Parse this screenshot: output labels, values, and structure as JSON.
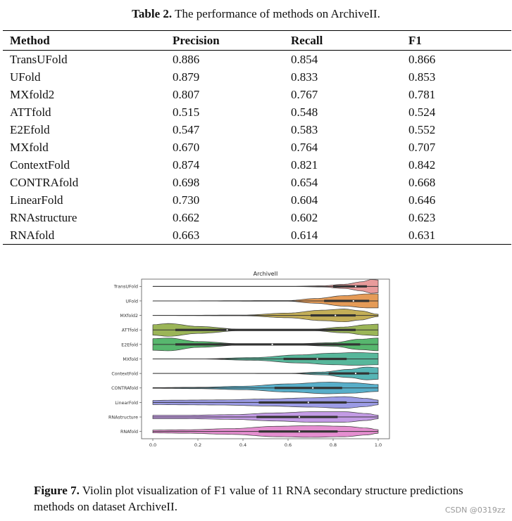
{
  "table_caption": {
    "label": "Table 2.",
    "text": " The performance of methods on ArchiveII."
  },
  "table": {
    "headers": [
      "Method",
      "Precision",
      "Recall",
      "F1"
    ],
    "rows": [
      [
        "TransUFold",
        "0.886",
        "0.854",
        "0.866"
      ],
      [
        "UFold",
        "0.879",
        "0.833",
        "0.853"
      ],
      [
        "MXfold2",
        "0.807",
        "0.767",
        "0.781"
      ],
      [
        "ATTfold",
        "0.515",
        "0.548",
        "0.524"
      ],
      [
        "E2Efold",
        "0.547",
        "0.583",
        "0.552"
      ],
      [
        "MXfold",
        "0.670",
        "0.764",
        "0.707"
      ],
      [
        "ContextFold",
        "0.874",
        "0.821",
        "0.842"
      ],
      [
        "CONTRAfold",
        "0.698",
        "0.654",
        "0.668"
      ],
      [
        "LinearFold",
        "0.730",
        "0.604",
        "0.646"
      ],
      [
        "RNAstructure",
        "0.662",
        "0.602",
        "0.623"
      ],
      [
        "RNAfold",
        "0.663",
        "0.614",
        "0.631"
      ]
    ]
  },
  "chart_data": {
    "type": "violin",
    "title": "ArchiveII",
    "orientation": "horizontal",
    "xlim": [
      -0.05,
      1.05
    ],
    "xticks": [
      "0.0",
      "0.2",
      "0.4",
      "0.6",
      "0.8",
      "1.0"
    ],
    "xtick_values": [
      0,
      0.2,
      0.4,
      0.6,
      0.8,
      1.0
    ],
    "categories": [
      "TransUFold",
      "UFold",
      "MXfold2",
      "ATTfold",
      "E2Efold",
      "MXfold",
      "ContextFold",
      "CONTRAfold",
      "LinearFold",
      "RNAstructure",
      "RNAfold"
    ],
    "colors": [
      "#e48a8a",
      "#e08a3a",
      "#b8a03a",
      "#8aa83a",
      "#3aaa55",
      "#3aaa8a",
      "#3aa8a8",
      "#3aa0c0",
      "#8a8ae0",
      "#b88ae0",
      "#e07ac8"
    ],
    "series": [
      {
        "name": "TransUFold",
        "q1": 0.8,
        "median": 0.9,
        "q3": 0.95,
        "profile": [
          [
            0,
            0.003
          ],
          [
            0.6,
            0.003
          ],
          [
            0.75,
            0.05
          ],
          [
            0.85,
            0.18
          ],
          [
            0.93,
            0.4
          ],
          [
            0.97,
            0.6
          ],
          [
            1.0,
            0.55
          ]
        ]
      },
      {
        "name": "UFold",
        "q1": 0.76,
        "median": 0.89,
        "q3": 0.96,
        "profile": [
          [
            0,
            0.003
          ],
          [
            0.6,
            0.03
          ],
          [
            0.72,
            0.2
          ],
          [
            0.85,
            0.45
          ],
          [
            0.95,
            0.6
          ],
          [
            1.0,
            0.6
          ]
        ]
      },
      {
        "name": "MXfold2",
        "q1": 0.7,
        "median": 0.81,
        "q3": 0.9,
        "profile": [
          [
            0,
            0.003
          ],
          [
            0.4,
            0.03
          ],
          [
            0.6,
            0.2
          ],
          [
            0.75,
            0.45
          ],
          [
            0.85,
            0.55
          ],
          [
            0.92,
            0.4
          ],
          [
            1.0,
            0.1
          ]
        ]
      },
      {
        "name": "ATTfold",
        "q1": 0.1,
        "median": 0.33,
        "q3": 0.9,
        "profile": [
          [
            0,
            0.45
          ],
          [
            0.07,
            0.55
          ],
          [
            0.2,
            0.3
          ],
          [
            0.4,
            0.05
          ],
          [
            0.55,
            0.02
          ],
          [
            0.7,
            0.05
          ],
          [
            0.85,
            0.25
          ],
          [
            0.95,
            0.45
          ],
          [
            1.0,
            0.5
          ]
        ]
      },
      {
        "name": "E2Efold",
        "q1": 0.1,
        "median": 0.53,
        "q3": 0.92,
        "profile": [
          [
            0,
            0.5
          ],
          [
            0.07,
            0.55
          ],
          [
            0.2,
            0.25
          ],
          [
            0.4,
            0.05
          ],
          [
            0.6,
            0.03
          ],
          [
            0.8,
            0.15
          ],
          [
            0.92,
            0.45
          ],
          [
            1.0,
            0.55
          ]
        ]
      },
      {
        "name": "MXfold",
        "q1": 0.58,
        "median": 0.73,
        "q3": 0.86,
        "profile": [
          [
            0,
            0.003
          ],
          [
            0.2,
            0.005
          ],
          [
            0.45,
            0.12
          ],
          [
            0.65,
            0.35
          ],
          [
            0.8,
            0.5
          ],
          [
            0.9,
            0.55
          ],
          [
            1.0,
            0.5
          ]
        ]
      },
      {
        "name": "ContextFold",
        "q1": 0.78,
        "median": 0.9,
        "q3": 0.96,
        "profile": [
          [
            0,
            0.003
          ],
          [
            0.6,
            0.005
          ],
          [
            0.75,
            0.12
          ],
          [
            0.87,
            0.35
          ],
          [
            0.95,
            0.55
          ],
          [
            1.0,
            0.5
          ]
        ]
      },
      {
        "name": "CONTRAfold",
        "q1": 0.54,
        "median": 0.71,
        "q3": 0.84,
        "profile": [
          [
            0,
            0.03
          ],
          [
            0.2,
            0.06
          ],
          [
            0.4,
            0.15
          ],
          [
            0.6,
            0.35
          ],
          [
            0.78,
            0.5
          ],
          [
            0.88,
            0.45
          ],
          [
            1.0,
            0.3
          ]
        ]
      },
      {
        "name": "LinearFold",
        "q1": 0.47,
        "median": 0.69,
        "q3": 0.86,
        "profile": [
          [
            0,
            0.18
          ],
          [
            0.1,
            0.2
          ],
          [
            0.3,
            0.22
          ],
          [
            0.5,
            0.3
          ],
          [
            0.7,
            0.4
          ],
          [
            0.85,
            0.5
          ],
          [
            0.95,
            0.35
          ],
          [
            1.0,
            0.2
          ]
        ]
      },
      {
        "name": "RNAstructure",
        "q1": 0.46,
        "median": 0.65,
        "q3": 0.82,
        "profile": [
          [
            0,
            0.15
          ],
          [
            0.15,
            0.15
          ],
          [
            0.35,
            0.2
          ],
          [
            0.55,
            0.35
          ],
          [
            0.7,
            0.45
          ],
          [
            0.85,
            0.45
          ],
          [
            0.95,
            0.3
          ],
          [
            1.0,
            0.15
          ]
        ]
      },
      {
        "name": "RNAfold",
        "q1": 0.47,
        "median": 0.65,
        "q3": 0.82,
        "profile": [
          [
            0,
            0.12
          ],
          [
            0.15,
            0.15
          ],
          [
            0.35,
            0.25
          ],
          [
            0.55,
            0.45
          ],
          [
            0.7,
            0.5
          ],
          [
            0.85,
            0.45
          ],
          [
            0.95,
            0.3
          ],
          [
            1.0,
            0.15
          ]
        ]
      }
    ]
  },
  "figure_caption": {
    "label": "Figure 7.",
    "text": " Violin plot visualization of F1 value of 11 RNA secondary structure predictions methods on dataset ArchiveII."
  },
  "watermark": "CSDN @0319zz"
}
